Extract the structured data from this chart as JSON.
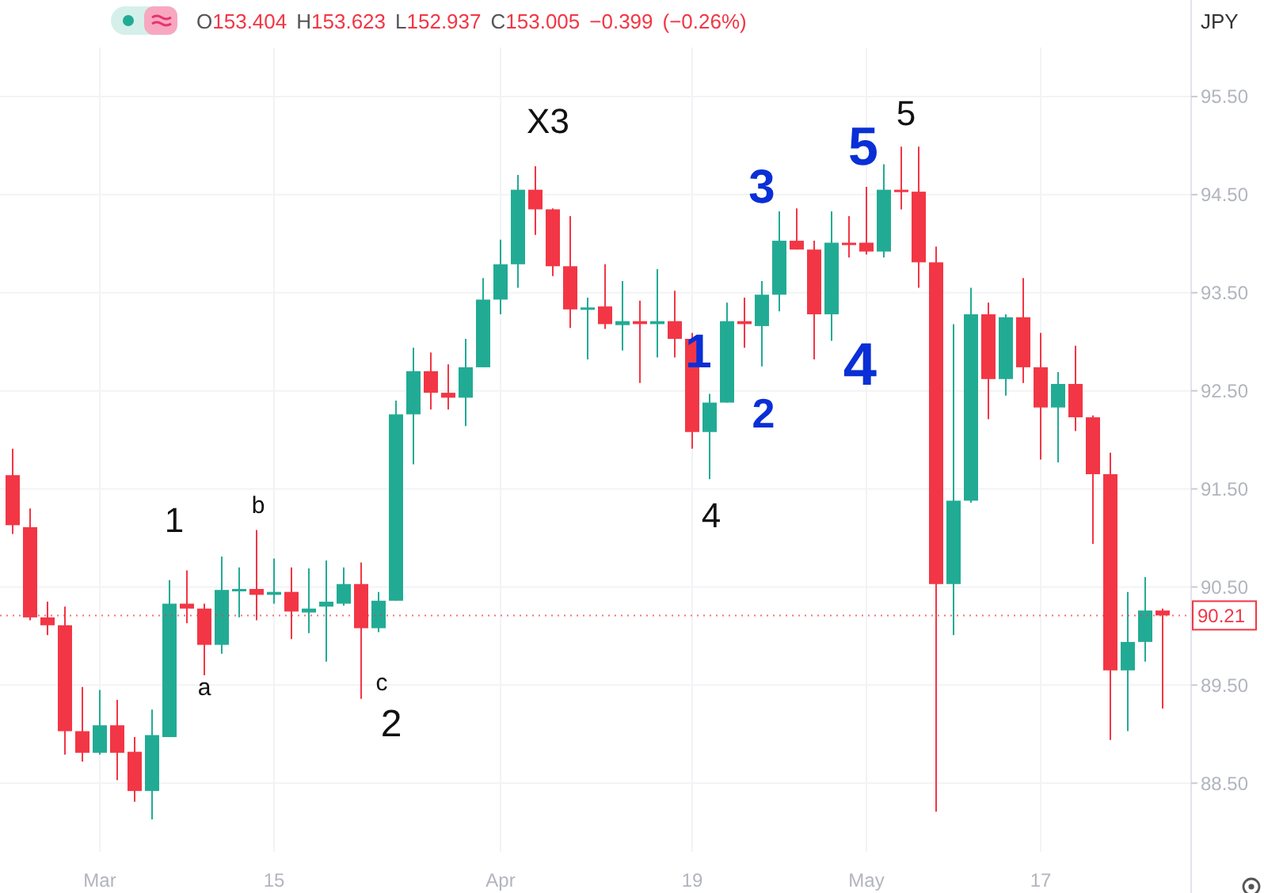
{
  "chart_data": {
    "type": "candlestick",
    "title": "O153.404 H153.623 L152.937 C153.005 −0.399 (−0.26%)",
    "categories": [
      null,
      null,
      null,
      null,
      null,
      "Mar",
      null,
      null,
      null,
      null,
      null,
      null,
      null,
      null,
      null,
      "15",
      null,
      null,
      null,
      null,
      null,
      null,
      null,
      null,
      null,
      null,
      null,
      null,
      "Apr",
      null,
      null,
      null,
      null,
      null,
      null,
      null,
      null,
      null,
      null,
      "19",
      null,
      null,
      null,
      null,
      null,
      null,
      null,
      null,
      null,
      "May",
      null,
      null,
      null,
      null,
      null,
      null,
      null,
      null,
      null,
      "17",
      null,
      null,
      null,
      null,
      null,
      null,
      null
    ],
    "ohlc": [
      [
        91.64,
        91.91,
        91.04,
        91.13
      ],
      [
        91.11,
        91.3,
        90.16,
        90.19
      ],
      [
        90.19,
        90.35,
        90.01,
        90.11
      ],
      [
        90.11,
        90.3,
        88.79,
        89.03
      ],
      [
        89.03,
        89.48,
        88.72,
        88.81
      ],
      [
        88.81,
        89.45,
        88.79,
        89.09
      ],
      [
        89.09,
        89.35,
        88.53,
        88.81
      ],
      [
        88.82,
        88.97,
        88.31,
        88.42
      ],
      [
        88.42,
        89.25,
        88.13,
        88.99
      ],
      [
        88.97,
        90.57,
        88.97,
        90.33
      ],
      [
        90.33,
        90.67,
        90.13,
        90.28
      ],
      [
        90.28,
        90.33,
        89.6,
        89.91
      ],
      [
        89.91,
        90.81,
        89.82,
        90.47
      ],
      [
        90.46,
        90.7,
        90.19,
        90.48
      ],
      [
        90.48,
        91.08,
        90.16,
        90.42
      ],
      [
        90.42,
        90.79,
        90.33,
        90.45
      ],
      [
        90.45,
        90.7,
        89.97,
        90.25
      ],
      [
        90.24,
        90.69,
        90.03,
        90.28
      ],
      [
        90.3,
        90.77,
        89.74,
        90.35
      ],
      [
        90.33,
        90.7,
        90.31,
        90.53
      ],
      [
        90.53,
        90.75,
        89.36,
        90.08
      ],
      [
        90.08,
        90.45,
        90.04,
        90.36
      ],
      [
        90.36,
        92.4,
        90.36,
        92.26
      ],
      [
        92.26,
        92.94,
        91.75,
        92.7
      ],
      [
        92.7,
        92.89,
        92.31,
        92.48
      ],
      [
        92.48,
        92.77,
        92.31,
        92.43
      ],
      [
        92.43,
        93.03,
        92.14,
        92.74
      ],
      [
        92.74,
        93.65,
        92.74,
        93.43
      ],
      [
        93.43,
        94.04,
        93.28,
        93.79
      ],
      [
        93.79,
        94.7,
        93.55,
        94.55
      ],
      [
        94.55,
        94.79,
        94.09,
        94.35
      ],
      [
        94.35,
        94.36,
        93.67,
        93.77
      ],
      [
        93.77,
        94.28,
        93.14,
        93.33
      ],
      [
        93.33,
        93.45,
        92.82,
        93.35
      ],
      [
        93.36,
        93.79,
        93.13,
        93.18
      ],
      [
        93.17,
        93.62,
        92.91,
        93.21
      ],
      [
        93.21,
        93.42,
        92.58,
        93.18
      ],
      [
        93.18,
        93.74,
        92.84,
        93.21
      ],
      [
        93.21,
        93.52,
        92.84,
        93.03
      ],
      [
        93.03,
        93.09,
        91.91,
        92.08
      ],
      [
        92.08,
        92.47,
        91.6,
        92.38
      ],
      [
        92.38,
        93.4,
        92.38,
        93.21
      ],
      [
        93.21,
        93.45,
        92.94,
        93.18
      ],
      [
        93.16,
        93.62,
        92.75,
        93.48
      ],
      [
        93.48,
        94.33,
        93.31,
        94.03
      ],
      [
        94.03,
        94.36,
        93.94,
        93.94
      ],
      [
        93.94,
        94.03,
        92.82,
        93.28
      ],
      [
        93.28,
        94.33,
        93.01,
        94.01
      ],
      [
        94.01,
        94.28,
        93.86,
        93.99
      ],
      [
        94.01,
        94.58,
        93.89,
        93.92
      ],
      [
        93.92,
        94.81,
        93.86,
        94.55
      ],
      [
        94.55,
        94.99,
        94.35,
        94.53
      ],
      [
        94.53,
        94.99,
        93.55,
        93.81
      ],
      [
        93.81,
        93.97,
        88.21,
        90.53
      ],
      [
        90.53,
        93.18,
        90.01,
        91.38
      ],
      [
        91.38,
        93.55,
        91.36,
        93.28
      ],
      [
        93.28,
        93.4,
        92.21,
        92.62
      ],
      [
        92.62,
        93.28,
        92.45,
        93.25
      ],
      [
        93.25,
        93.65,
        92.58,
        92.74
      ],
      [
        92.74,
        93.09,
        91.8,
        92.33
      ],
      [
        92.33,
        92.69,
        91.77,
        92.57
      ],
      [
        92.57,
        92.96,
        92.09,
        92.23
      ],
      [
        92.23,
        92.25,
        90.94,
        91.65
      ],
      [
        91.65,
        91.87,
        88.94,
        89.65
      ],
      [
        89.65,
        90.45,
        89.03,
        89.94
      ],
      [
        89.94,
        90.6,
        89.74,
        90.26
      ],
      [
        90.26,
        90.28,
        89.26,
        90.21
      ]
    ],
    "colors": [
      "#f23645",
      "#f23645",
      "#f23645",
      "#f23645",
      "#f23645",
      "#22ab94",
      "#f23645",
      "#f23645",
      "#22ab94",
      "#22ab94",
      "#f23645",
      "#f23645",
      "#22ab94",
      "#22ab94",
      "#f23645",
      "#22ab94",
      "#f23645",
      "#22ab94",
      "#22ab94",
      "#22ab94",
      "#f23645",
      "#22ab94",
      "#22ab94",
      "#22ab94",
      "#f23645",
      "#f23645",
      "#22ab94",
      "#22ab94",
      "#22ab94",
      "#22ab94",
      "#f23645",
      "#f23645",
      "#f23645",
      "#22ab94",
      "#f23645",
      "#22ab94",
      "#f23645",
      "#22ab94",
      "#f23645",
      "#f23645",
      "#22ab94",
      "#22ab94",
      "#f23645",
      "#22ab94",
      "#22ab94",
      "#f23645",
      "#f23645",
      "#22ab94",
      "#f23645",
      "#f23645",
      "#22ab94",
      "#f23645",
      "#f23645",
      "#f23645",
      "#22ab94",
      "#22ab94",
      "#f23645",
      "#22ab94",
      "#f23645",
      "#f23645",
      "#22ab94",
      "#f23645",
      "#f23645",
      "#f23645",
      "#22ab94",
      "#22ab94",
      "#f23645"
    ],
    "ylim": [
      87.8,
      96.0
    ],
    "yticks": [
      {
        "value": 88.5,
        "label": "88.50"
      },
      {
        "value": 89.5,
        "label": "89.50"
      },
      {
        "value": 90.5,
        "label": "90.50"
      },
      {
        "value": 91.5,
        "label": "91.50"
      },
      {
        "value": 92.5,
        "label": "92.50"
      },
      {
        "value": 93.5,
        "label": "93.50"
      },
      {
        "value": 94.5,
        "label": "94.50"
      },
      {
        "value": 95.5,
        "label": "95.50"
      }
    ],
    "grid": true,
    "ref_lines": [
      {
        "axis": "y",
        "value": 90.21,
        "label": "90.21",
        "color": "#f23645"
      }
    ],
    "annotations": [
      "1",
      "a",
      "b",
      "c",
      "2",
      "X3",
      "4",
      "1",
      "2",
      "3",
      "4",
      "5",
      "5",
      "JPY"
    ]
  }
}
